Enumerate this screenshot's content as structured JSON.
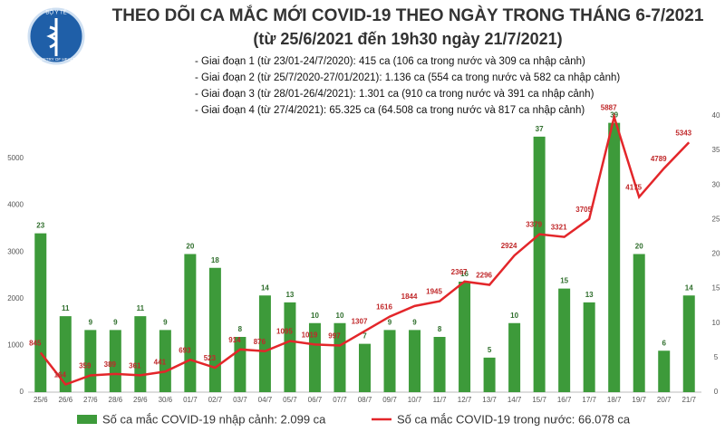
{
  "logo": {
    "top": "BỘ Y TẾ",
    "bottom": "MINISTRY OF HEALTH"
  },
  "chart_data": {
    "type": "combo",
    "title": "THEO DÕI CA MẮC MỚI COVID-19 THEO NGÀY TRONG THÁNG 6-7/2021",
    "subtitle": "(từ 25/6/2021 đến 19h30 ngày 21/7/2021)",
    "notes": [
      "- Giai đoạn 1 (từ 23/01-24/7/2020): 415 ca (106 ca trong nước và 309 ca nhập cảnh)",
      "- Giai đoạn 2 (từ 25/7/2020-27/01/2021): 1.136 ca (554 ca trong nước và 582 ca nhập cảnh)",
      "- Giai đoạn 3 (từ 28/01-26/4/2021): 1.301 ca (910 ca trong nước và 391 ca nhập cảnh)",
      "- Giai đoạn 4 (từ 27/4/2021): 65.325 ca (64.508 ca trong nước và 817 ca nhập cảnh)"
    ],
    "categories": [
      "25/6",
      "26/6",
      "27/6",
      "28/6",
      "29/6",
      "30/6",
      "01/7",
      "02/7",
      "03/7",
      "04/7",
      "05/7",
      "06/7",
      "07/7",
      "08/7",
      "09/7",
      "10/7",
      "11/7",
      "12/7",
      "13/7",
      "14/7",
      "15/7",
      "16/7",
      "17/7",
      "18/7",
      "19/7",
      "20/7",
      "21/7"
    ],
    "series": [
      {
        "name": "Số ca mắc COVID-19 nhập cảnh: 2.099 ca",
        "type": "bar",
        "axis": "y2",
        "color": "#3d9a3a",
        "values": [
          23,
          11,
          9,
          9,
          11,
          9,
          20,
          18,
          8,
          14,
          13,
          10,
          10,
          7,
          9,
          9,
          8,
          16,
          5,
          10,
          37,
          15,
          13,
          39,
          20,
          6,
          14
        ]
      },
      {
        "name": "Số ca mắc COVID-19 trong nước: 66.078 ca",
        "type": "line",
        "color": "#e3262a",
        "values": [
          845,
          164,
          359,
          389,
          361,
          441,
          693,
          523,
          914,
          876,
          1095,
          1019,
          997,
          1307,
          1616,
          1844,
          1945,
          2367,
          2296,
          2924,
          3379,
          3321,
          3705,
          5887,
          4175,
          4789,
          5343
        ]
      }
    ],
    "ylim": [
      0,
      5910
    ],
    "yticks": [
      0,
      1000,
      2000,
      3000,
      4000,
      5000
    ],
    "y2lim": [
      0,
      40
    ],
    "y2ticks": [
      0,
      5,
      10,
      15,
      20,
      25,
      30,
      35,
      40
    ]
  }
}
